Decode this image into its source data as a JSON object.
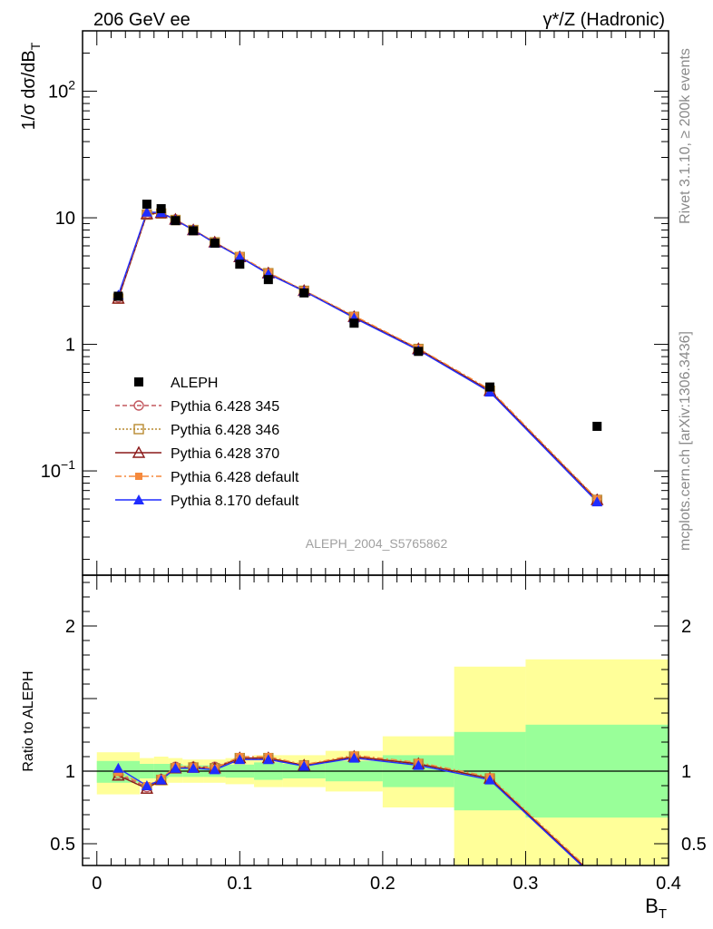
{
  "header": {
    "left_label": "206 GeV ee",
    "right_label": "γ*/Z (Hadronic)"
  },
  "side_labels": {
    "rivet": "Rivet 3.1.10, ≥ 200k events",
    "mcplots": "mcplots.cern.ch [arXiv:1306.3436]"
  },
  "analysis_label": "ALEPH_2004_S5765862",
  "colors": {
    "aleph": "#000000",
    "py345": "#c3585f",
    "py346": "#b88a30",
    "py370": "#8b1a1a",
    "py6def": "#f5893c",
    "py8def": "#1f2cff",
    "band_inner": "#99ff99",
    "band_outer": "#ffff99"
  },
  "chart_data": [
    {
      "type": "scatter",
      "panel": "main",
      "ylabel": "1/σ  dσ/dB_T",
      "xlabel": "",
      "yscale": "log",
      "ylim": [
        0.015,
        300
      ],
      "xlim": [
        -0.01,
        0.4
      ],
      "yticks": [
        {
          "value": 0.1,
          "base": "10",
          "exp": "−1"
        },
        {
          "value": 1,
          "base": "1",
          "exp": ""
        },
        {
          "value": 10,
          "base": "10",
          "exp": ""
        },
        {
          "value": 100,
          "base": "10",
          "exp": "2"
        }
      ],
      "legend_position": "lower-left",
      "x": [
        0.015,
        0.035,
        0.045,
        0.055,
        0.0675,
        0.0825,
        0.1,
        0.12,
        0.145,
        0.18,
        0.225,
        0.275,
        0.35
      ],
      "data": {
        "name": "ALEPH",
        "values": [
          2.4,
          12.8,
          11.8,
          9.5,
          7.9,
          6.3,
          4.3,
          3.25,
          2.55,
          1.47,
          0.88,
          0.46,
          0.225
        ]
      },
      "series": [
        {
          "name": "Pythia 6.428 345",
          "key": "py345",
          "values": [
            2.35,
            10.7,
            10.9,
            9.7,
            8.0,
            6.4,
            4.9,
            3.65,
            2.65,
            1.65,
            0.92,
            0.43,
            0.059
          ]
        },
        {
          "name": "Pythia 6.428 346",
          "key": "py346",
          "values": [
            2.3,
            10.6,
            10.8,
            9.6,
            8.0,
            6.4,
            4.9,
            3.65,
            2.65,
            1.65,
            0.92,
            0.43,
            0.059
          ]
        },
        {
          "name": "Pythia 6.428 370",
          "key": "py370",
          "values": [
            2.3,
            10.7,
            10.9,
            9.7,
            8.0,
            6.4,
            4.9,
            3.65,
            2.65,
            1.65,
            0.92,
            0.43,
            0.059
          ]
        },
        {
          "name": "Pythia 6.428 default",
          "key": "py6def",
          "values": [
            2.4,
            10.8,
            11.0,
            9.7,
            8.1,
            6.4,
            5.0,
            3.7,
            2.67,
            1.68,
            0.93,
            0.44,
            0.06
          ]
        },
        {
          "name": "Pythia 8.170 default",
          "key": "py8def",
          "values": [
            2.45,
            11.1,
            11.0,
            9.6,
            8.0,
            6.3,
            4.9,
            3.6,
            2.63,
            1.62,
            0.9,
            0.42,
            0.057
          ]
        }
      ]
    },
    {
      "type": "line",
      "panel": "ratio",
      "ylabel": "Ratio to ALEPH",
      "xlabel": "B_T",
      "ylim": [
        0.35,
        2.35
      ],
      "xlim": [
        -0.01,
        0.4
      ],
      "yticks": [
        0.5,
        1,
        2
      ],
      "xticks": [
        0,
        0.1,
        0.2,
        0.3,
        0.4
      ],
      "bands": [
        {
          "x0": 0.0,
          "x1": 0.03,
          "inner": [
            0.92,
            1.07
          ],
          "outer": [
            0.84,
            1.13
          ]
        },
        {
          "x0": 0.03,
          "x1": 0.04,
          "inner": [
            0.95,
            1.05
          ],
          "outer": [
            0.9,
            1.09
          ]
        },
        {
          "x0": 0.04,
          "x1": 0.05,
          "inner": [
            0.95,
            1.05
          ],
          "outer": [
            0.9,
            1.1
          ]
        },
        {
          "x0": 0.05,
          "x1": 0.06,
          "inner": [
            0.96,
            1.05
          ],
          "outer": [
            0.92,
            1.09
          ]
        },
        {
          "x0": 0.06,
          "x1": 0.075,
          "inner": [
            0.96,
            1.04
          ],
          "outer": [
            0.92,
            1.08
          ]
        },
        {
          "x0": 0.075,
          "x1": 0.09,
          "inner": [
            0.96,
            1.04
          ],
          "outer": [
            0.92,
            1.08
          ]
        },
        {
          "x0": 0.09,
          "x1": 0.11,
          "inner": [
            0.955,
            1.045
          ],
          "outer": [
            0.91,
            1.09
          ]
        },
        {
          "x0": 0.11,
          "x1": 0.13,
          "inner": [
            0.94,
            1.06
          ],
          "outer": [
            0.89,
            1.11
          ]
        },
        {
          "x0": 0.13,
          "x1": 0.16,
          "inner": [
            0.95,
            1.05
          ],
          "outer": [
            0.89,
            1.11
          ]
        },
        {
          "x0": 0.16,
          "x1": 0.2,
          "inner": [
            0.93,
            1.07
          ],
          "outer": [
            0.86,
            1.14
          ]
        },
        {
          "x0": 0.2,
          "x1": 0.25,
          "inner": [
            0.89,
            1.11
          ],
          "outer": [
            0.75,
            1.24
          ]
        },
        {
          "x0": 0.25,
          "x1": 0.3,
          "inner": [
            0.73,
            1.27
          ],
          "outer": [
            0.35,
            1.72
          ]
        },
        {
          "x0": 0.3,
          "x1": 0.4,
          "inner": [
            0.68,
            1.32
          ],
          "outer": [
            0.35,
            1.77
          ]
        }
      ],
      "series": [
        {
          "name": "Pythia 6.428 345",
          "key": "py345",
          "values": [
            0.98,
            0.89,
            0.945,
            1.03,
            1.03,
            1.03,
            1.09,
            1.09,
            1.04,
            1.1,
            1.05,
            0.95,
            0.26
          ]
        },
        {
          "name": "Pythia 6.428 346",
          "key": "py346",
          "values": [
            0.97,
            0.88,
            0.94,
            1.02,
            1.025,
            1.02,
            1.09,
            1.09,
            1.04,
            1.1,
            1.05,
            0.95,
            0.26
          ]
        },
        {
          "name": "Pythia 6.428 370",
          "key": "py370",
          "values": [
            0.97,
            0.88,
            0.94,
            1.02,
            1.025,
            1.02,
            1.09,
            1.09,
            1.04,
            1.1,
            1.05,
            0.95,
            0.26
          ]
        },
        {
          "name": "Pythia 6.428 default",
          "key": "py6def",
          "values": [
            0.99,
            0.9,
            0.95,
            1.03,
            1.03,
            1.02,
            1.1,
            1.1,
            1.045,
            1.11,
            1.06,
            0.96,
            0.27
          ]
        },
        {
          "name": "Pythia 8.170 default",
          "key": "py8def",
          "values": [
            1.02,
            0.9,
            0.94,
            1.02,
            1.02,
            1.01,
            1.08,
            1.08,
            1.035,
            1.09,
            1.04,
            0.94,
            0.25
          ]
        }
      ]
    }
  ]
}
